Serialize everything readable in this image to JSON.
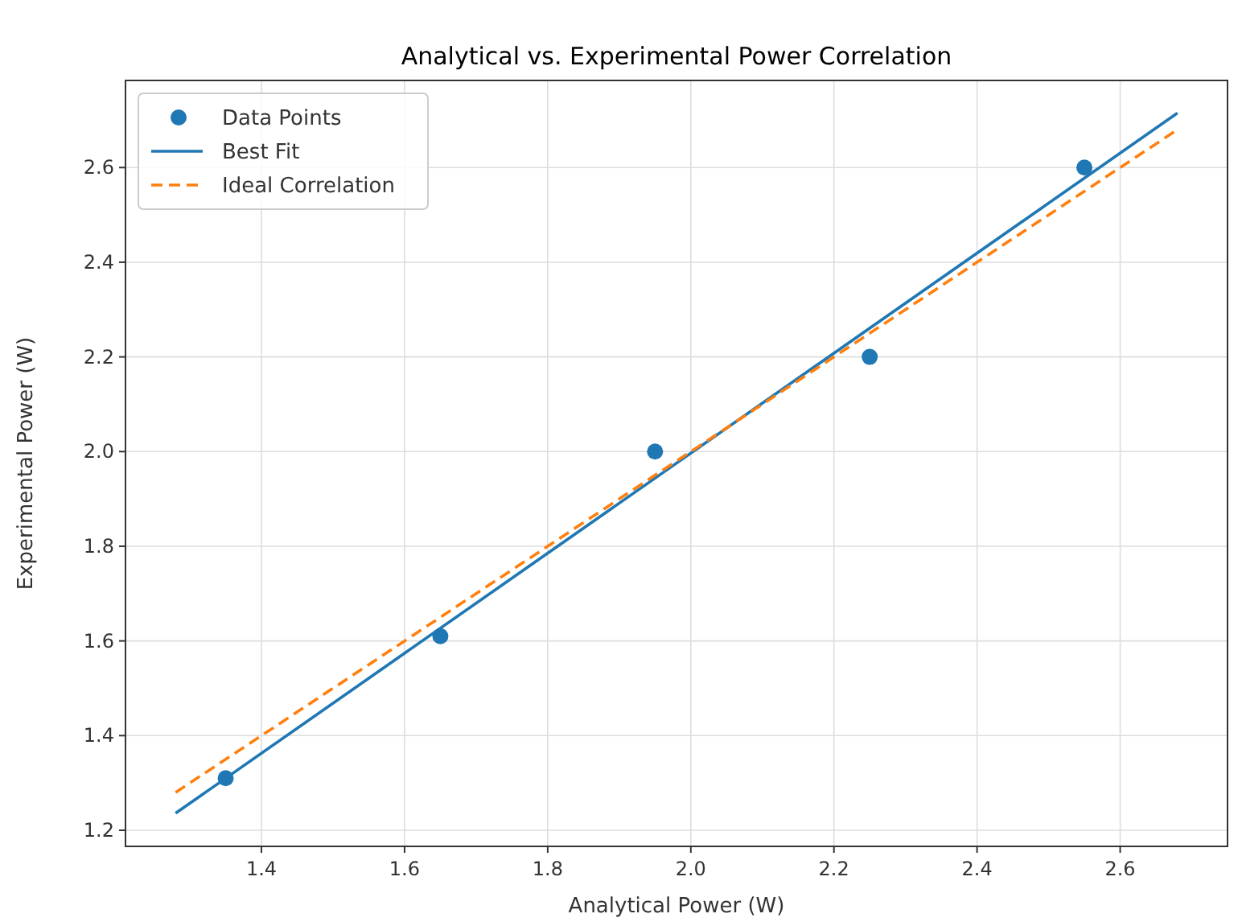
{
  "chart_data": {
    "type": "scatter",
    "title": "Analytical vs. Experimental Power Correlation",
    "xlabel": "Analytical Power (W)",
    "ylabel": "Experimental Power (W)",
    "series": [
      {
        "name": "Data Points",
        "color": "#1f77b4",
        "marker": "circle",
        "x": [
          1.35,
          1.65,
          1.95,
          2.25,
          2.55
        ],
        "values": [
          1.31,
          1.61,
          2.0,
          2.2,
          2.6
        ]
      },
      {
        "name": "Best Fit",
        "type": "line",
        "color": "#1f77b4",
        "line_style": "solid",
        "x": [
          1.28,
          2.68
        ],
        "values": [
          1.236,
          2.715
        ]
      },
      {
        "name": "Ideal Correlation",
        "type": "line",
        "color": "#ff7f0e",
        "line_style": "dashed",
        "x": [
          1.28,
          2.68
        ],
        "values": [
          1.28,
          2.68
        ]
      }
    ],
    "xlim": [
      1.21,
      2.75
    ],
    "ylim": [
      1.166,
      2.784
    ],
    "xticks": [
      {
        "value": 1.4,
        "label": "1.4"
      },
      {
        "value": 1.6,
        "label": "1.6"
      },
      {
        "value": 1.8,
        "label": "1.8"
      },
      {
        "value": 2.0,
        "label": "2.0"
      },
      {
        "value": 2.2,
        "label": "2.2"
      },
      {
        "value": 2.4,
        "label": "2.4"
      },
      {
        "value": 2.6,
        "label": "2.6"
      }
    ],
    "yticks": [
      {
        "value": 1.2,
        "label": "1.2"
      },
      {
        "value": 1.4,
        "label": "1.4"
      },
      {
        "value": 1.6,
        "label": "1.6"
      },
      {
        "value": 1.8,
        "label": "1.8"
      },
      {
        "value": 2.0,
        "label": "2.0"
      },
      {
        "value": 2.2,
        "label": "2.2"
      },
      {
        "value": 2.4,
        "label": "2.4"
      },
      {
        "value": 2.6,
        "label": "2.6"
      }
    ],
    "grid": true,
    "legend": "top left"
  }
}
